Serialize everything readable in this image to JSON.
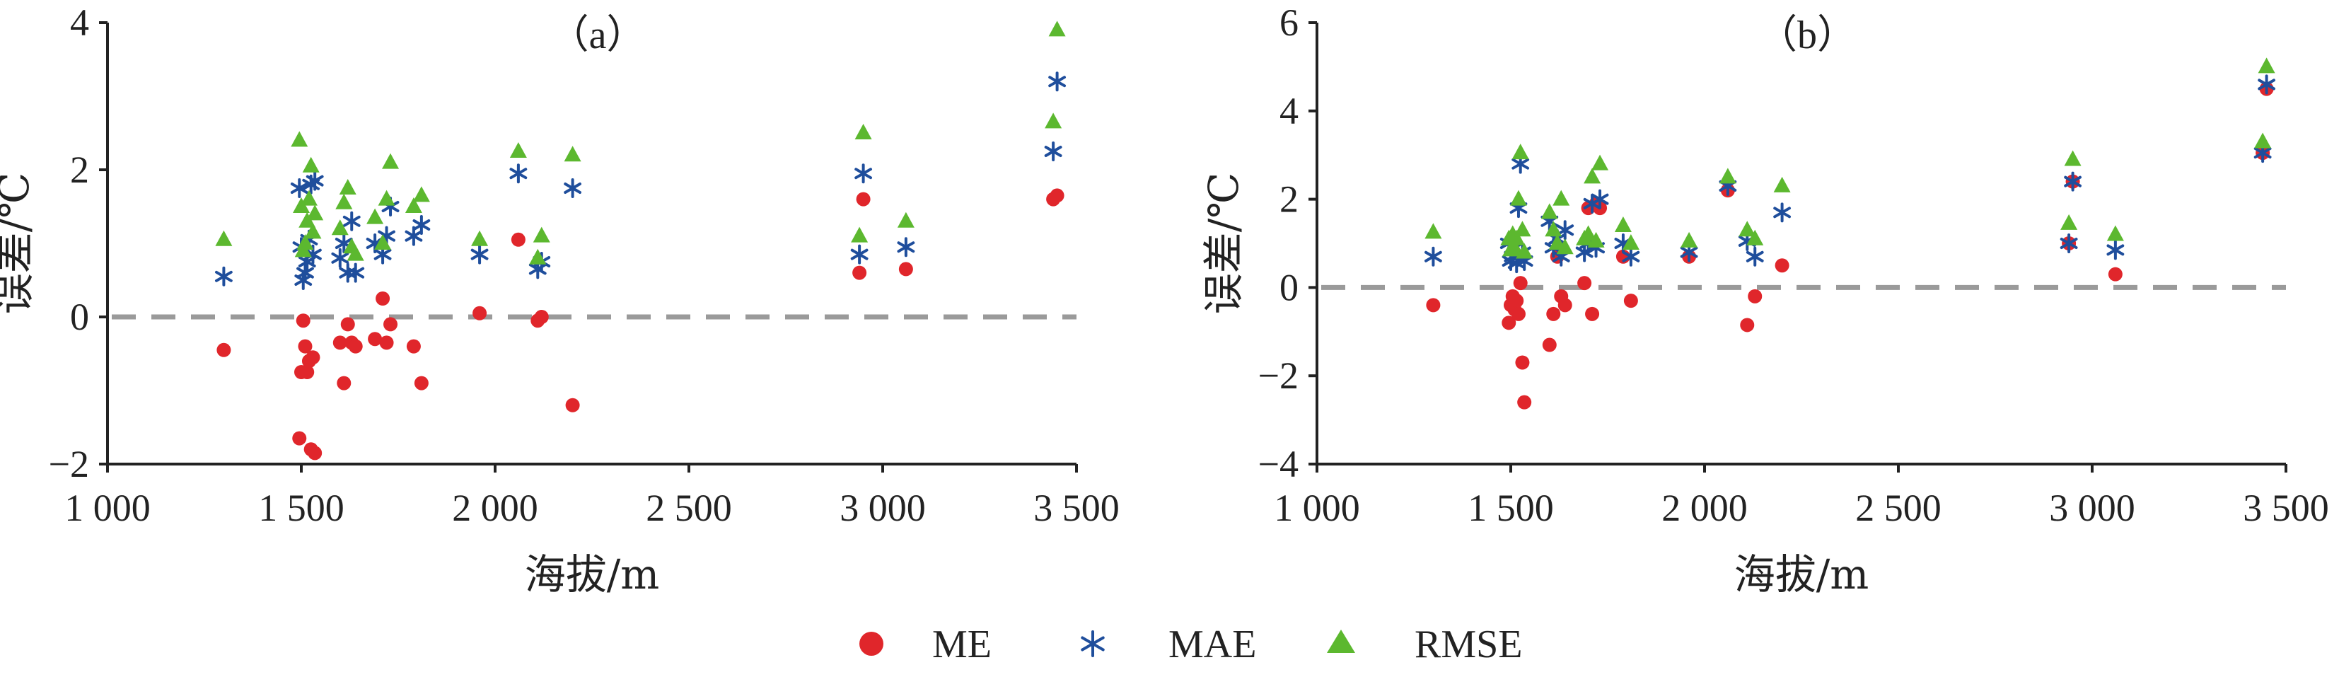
{
  "legend": {
    "items": [
      {
        "label": "ME",
        "marker": "circle",
        "color": "#e0262b"
      },
      {
        "label": "MAE",
        "marker": "asterisk",
        "color": "#1f4e9c"
      },
      {
        "label": "RMSE",
        "marker": "triangle",
        "color": "#5cb82f"
      }
    ]
  },
  "chart_data": [
    {
      "type": "scatter",
      "panel_label": "（a）",
      "xlabel": "海拔/m",
      "ylabel": "误差/℃",
      "xlim": [
        1000,
        3500
      ],
      "ylim": [
        -2,
        4
      ],
      "xticks": [
        1000,
        1500,
        2000,
        2500,
        3000,
        3500
      ],
      "xtick_labels": [
        "1 000",
        "1 500",
        "2 000",
        "2 500",
        "3 000",
        "3 500"
      ],
      "yticks": [
        -2,
        0,
        2,
        4
      ],
      "ytick_labels": [
        "−2",
        "0",
        "2",
        "4"
      ],
      "reference_line": {
        "y": 0,
        "style": "dashed"
      },
      "series": [
        {
          "name": "ME",
          "points": [
            [
              1300,
              -0.45
            ],
            [
              1495,
              -1.65
            ],
            [
              1500,
              -0.75
            ],
            [
              1505,
              -0.05
            ],
            [
              1510,
              -0.4
            ],
            [
              1515,
              -0.75
            ],
            [
              1520,
              -0.6
            ],
            [
              1525,
              -1.8
            ],
            [
              1530,
              -0.55
            ],
            [
              1535,
              -1.85
            ],
            [
              1600,
              -0.35
            ],
            [
              1610,
              -0.9
            ],
            [
              1620,
              -0.1
            ],
            [
              1630,
              -0.35
            ],
            [
              1640,
              -0.4
            ],
            [
              1690,
              -0.3
            ],
            [
              1710,
              0.25
            ],
            [
              1720,
              -0.35
            ],
            [
              1730,
              -0.1
            ],
            [
              1790,
              -0.4
            ],
            [
              1810,
              -0.9
            ],
            [
              1960,
              0.05
            ],
            [
              2060,
              1.05
            ],
            [
              2110,
              -0.05
            ],
            [
              2120,
              0.0
            ],
            [
              2200,
              -1.2
            ],
            [
              2940,
              0.6
            ],
            [
              2950,
              1.6
            ],
            [
              3060,
              0.65
            ],
            [
              3440,
              1.6
            ],
            [
              3450,
              1.65
            ]
          ]
        },
        {
          "name": "MAE",
          "points": [
            [
              1300,
              0.55
            ],
            [
              1495,
              1.75
            ],
            [
              1500,
              0.95
            ],
            [
              1505,
              0.5
            ],
            [
              1510,
              0.6
            ],
            [
              1515,
              0.75
            ],
            [
              1520,
              1.05
            ],
            [
              1525,
              1.8
            ],
            [
              1530,
              0.85
            ],
            [
              1535,
              1.85
            ],
            [
              1600,
              0.8
            ],
            [
              1610,
              1.0
            ],
            [
              1620,
              0.6
            ],
            [
              1630,
              1.3
            ],
            [
              1640,
              0.6
            ],
            [
              1690,
              1.0
            ],
            [
              1710,
              0.85
            ],
            [
              1720,
              1.1
            ],
            [
              1730,
              1.5
            ],
            [
              1790,
              1.1
            ],
            [
              1810,
              1.25
            ],
            [
              1960,
              0.85
            ],
            [
              2060,
              1.95
            ],
            [
              2110,
              0.65
            ],
            [
              2120,
              0.75
            ],
            [
              2200,
              1.75
            ],
            [
              2940,
              0.85
            ],
            [
              2950,
              1.95
            ],
            [
              3060,
              0.95
            ],
            [
              3440,
              2.25
            ],
            [
              3450,
              3.2
            ]
          ]
        },
        {
          "name": "RMSE",
          "points": [
            [
              1300,
              1.05
            ],
            [
              1495,
              2.4
            ],
            [
              1500,
              1.5
            ],
            [
              1505,
              0.9
            ],
            [
              1510,
              1.0
            ],
            [
              1515,
              1.3
            ],
            [
              1520,
              1.6
            ],
            [
              1525,
              2.05
            ],
            [
              1530,
              1.15
            ],
            [
              1535,
              1.4
            ],
            [
              1600,
              1.2
            ],
            [
              1610,
              1.55
            ],
            [
              1620,
              1.75
            ],
            [
              1630,
              0.95
            ],
            [
              1640,
              0.85
            ],
            [
              1690,
              1.35
            ],
            [
              1710,
              1.0
            ],
            [
              1720,
              1.6
            ],
            [
              1730,
              2.1
            ],
            [
              1790,
              1.5
            ],
            [
              1810,
              1.65
            ],
            [
              1960,
              1.05
            ],
            [
              2060,
              2.25
            ],
            [
              2110,
              0.8
            ],
            [
              2120,
              1.1
            ],
            [
              2200,
              2.2
            ],
            [
              2940,
              1.1
            ],
            [
              2950,
              2.5
            ],
            [
              3060,
              1.3
            ],
            [
              3440,
              2.65
            ],
            [
              3450,
              3.9
            ]
          ]
        }
      ]
    },
    {
      "type": "scatter",
      "panel_label": "（b）",
      "xlabel": "海拔/m",
      "ylabel": "误差/℃",
      "xlim": [
        1000,
        3500
      ],
      "ylim": [
        -4,
        6
      ],
      "xticks": [
        1000,
        1500,
        2000,
        2500,
        3000,
        3500
      ],
      "xtick_labels": [
        "1 000",
        "1 500",
        "2 000",
        "2 500",
        "3 000",
        "3 500"
      ],
      "yticks": [
        -4,
        -2,
        0,
        2,
        4,
        6
      ],
      "ytick_labels": [
        "−4",
        "−2",
        "0",
        "2",
        "4",
        "6"
      ],
      "reference_line": {
        "y": 0,
        "style": "dashed"
      },
      "series": [
        {
          "name": "ME",
          "points": [
            [
              1300,
              -0.4
            ],
            [
              1495,
              -0.8
            ],
            [
              1500,
              -0.4
            ],
            [
              1505,
              -0.2
            ],
            [
              1510,
              -0.5
            ],
            [
              1515,
              -0.3
            ],
            [
              1520,
              -0.6
            ],
            [
              1525,
              0.1
            ],
            [
              1530,
              -1.7
            ],
            [
              1535,
              -2.6
            ],
            [
              1600,
              -1.3
            ],
            [
              1610,
              -0.6
            ],
            [
              1620,
              0.7
            ],
            [
              1630,
              -0.2
            ],
            [
              1640,
              -0.4
            ],
            [
              1690,
              0.1
            ],
            [
              1700,
              1.8
            ],
            [
              1710,
              -0.6
            ],
            [
              1720,
              1.9
            ],
            [
              1730,
              1.8
            ],
            [
              1790,
              0.7
            ],
            [
              1810,
              -0.3
            ],
            [
              1960,
              0.7
            ],
            [
              2060,
              2.2
            ],
            [
              2110,
              -0.85
            ],
            [
              2130,
              -0.2
            ],
            [
              2200,
              0.5
            ],
            [
              2940,
              1.0
            ],
            [
              2950,
              2.4
            ],
            [
              3060,
              0.3
            ],
            [
              3440,
              3.05
            ],
            [
              3450,
              4.5
            ]
          ]
        },
        {
          "name": "MAE",
          "points": [
            [
              1300,
              0.7
            ],
            [
              1495,
              1.0
            ],
            [
              1500,
              0.6
            ],
            [
              1505,
              0.7
            ],
            [
              1510,
              0.9
            ],
            [
              1515,
              0.55
            ],
            [
              1520,
              1.8
            ],
            [
              1525,
              2.8
            ],
            [
              1530,
              0.8
            ],
            [
              1535,
              0.6
            ],
            [
              1600,
              1.5
            ],
            [
              1610,
              0.9
            ],
            [
              1620,
              1.1
            ],
            [
              1630,
              0.7
            ],
            [
              1640,
              1.3
            ],
            [
              1690,
              0.8
            ],
            [
              1700,
              1.0
            ],
            [
              1710,
              1.9
            ],
            [
              1720,
              0.9
            ],
            [
              1730,
              2.0
            ],
            [
              1790,
              1.0
            ],
            [
              1810,
              0.7
            ],
            [
              1960,
              0.8
            ],
            [
              2060,
              2.3
            ],
            [
              2110,
              1.05
            ],
            [
              2130,
              0.7
            ],
            [
              2200,
              1.7
            ],
            [
              2940,
              1.0
            ],
            [
              2950,
              2.4
            ],
            [
              3060,
              0.85
            ],
            [
              3440,
              3.05
            ],
            [
              3450,
              4.6
            ]
          ]
        },
        {
          "name": "RMSE",
          "points": [
            [
              1300,
              1.25
            ],
            [
              1495,
              1.1
            ],
            [
              1500,
              0.85
            ],
            [
              1505,
              1.2
            ],
            [
              1510,
              0.9
            ],
            [
              1515,
              1.1
            ],
            [
              1520,
              2.0
            ],
            [
              1525,
              3.05
            ],
            [
              1530,
              1.3
            ],
            [
              1535,
              0.8
            ],
            [
              1600,
              1.7
            ],
            [
              1610,
              1.3
            ],
            [
              1620,
              1.0
            ],
            [
              1630,
              2.0
            ],
            [
              1640,
              0.9
            ],
            [
              1690,
              1.1
            ],
            [
              1700,
              1.2
            ],
            [
              1710,
              2.5
            ],
            [
              1720,
              1.05
            ],
            [
              1730,
              2.8
            ],
            [
              1790,
              1.4
            ],
            [
              1810,
              1.0
            ],
            [
              1960,
              1.05
            ],
            [
              2060,
              2.5
            ],
            [
              2110,
              1.3
            ],
            [
              2130,
              1.1
            ],
            [
              2200,
              2.3
            ],
            [
              2940,
              1.45
            ],
            [
              2950,
              2.9
            ],
            [
              3060,
              1.2
            ],
            [
              3440,
              3.3
            ],
            [
              3450,
              5.0
            ]
          ]
        }
      ]
    }
  ]
}
